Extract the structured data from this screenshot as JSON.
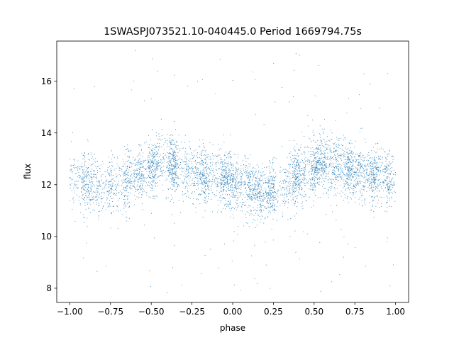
{
  "chart_data": {
    "type": "scatter",
    "title": "1SWASPJ073521.10-040445.0 Period 1669794.75s",
    "xlabel": "phase",
    "ylabel": "flux",
    "xlim": [
      -1.08,
      1.08
    ],
    "ylim": [
      7.45,
      17.55
    ],
    "xticks": [
      -1.0,
      -0.75,
      -0.5,
      -0.25,
      0.0,
      0.25,
      0.5,
      0.75,
      1.0
    ],
    "xtick_labels": [
      "−1.00",
      "−0.75",
      "−0.50",
      "−0.25",
      "0.00",
      "0.25",
      "0.50",
      "0.75",
      "1.00"
    ],
    "yticks": [
      8,
      10,
      12,
      14,
      16
    ],
    "ytick_labels": [
      "8",
      "10",
      "12",
      "14",
      "16"
    ],
    "grid": false,
    "marker_color": "#1f77b4",
    "profile": {
      "phase": [
        -1.0,
        -0.9,
        -0.8,
        -0.7,
        -0.6,
        -0.5,
        -0.45,
        -0.4,
        -0.3,
        -0.2,
        -0.1,
        0.0,
        0.1,
        0.2,
        0.3,
        0.4,
        0.5,
        0.55,
        0.6,
        0.7,
        0.8,
        0.9,
        1.0
      ],
      "median_flux": [
        12.3,
        12.1,
        11.9,
        12.0,
        12.3,
        12.7,
        12.9,
        12.8,
        12.6,
        12.4,
        12.3,
        12.1,
        11.9,
        11.7,
        11.9,
        12.3,
        12.7,
        12.9,
        12.8,
        12.6,
        12.4,
        12.3,
        12.2
      ]
    }
  }
}
